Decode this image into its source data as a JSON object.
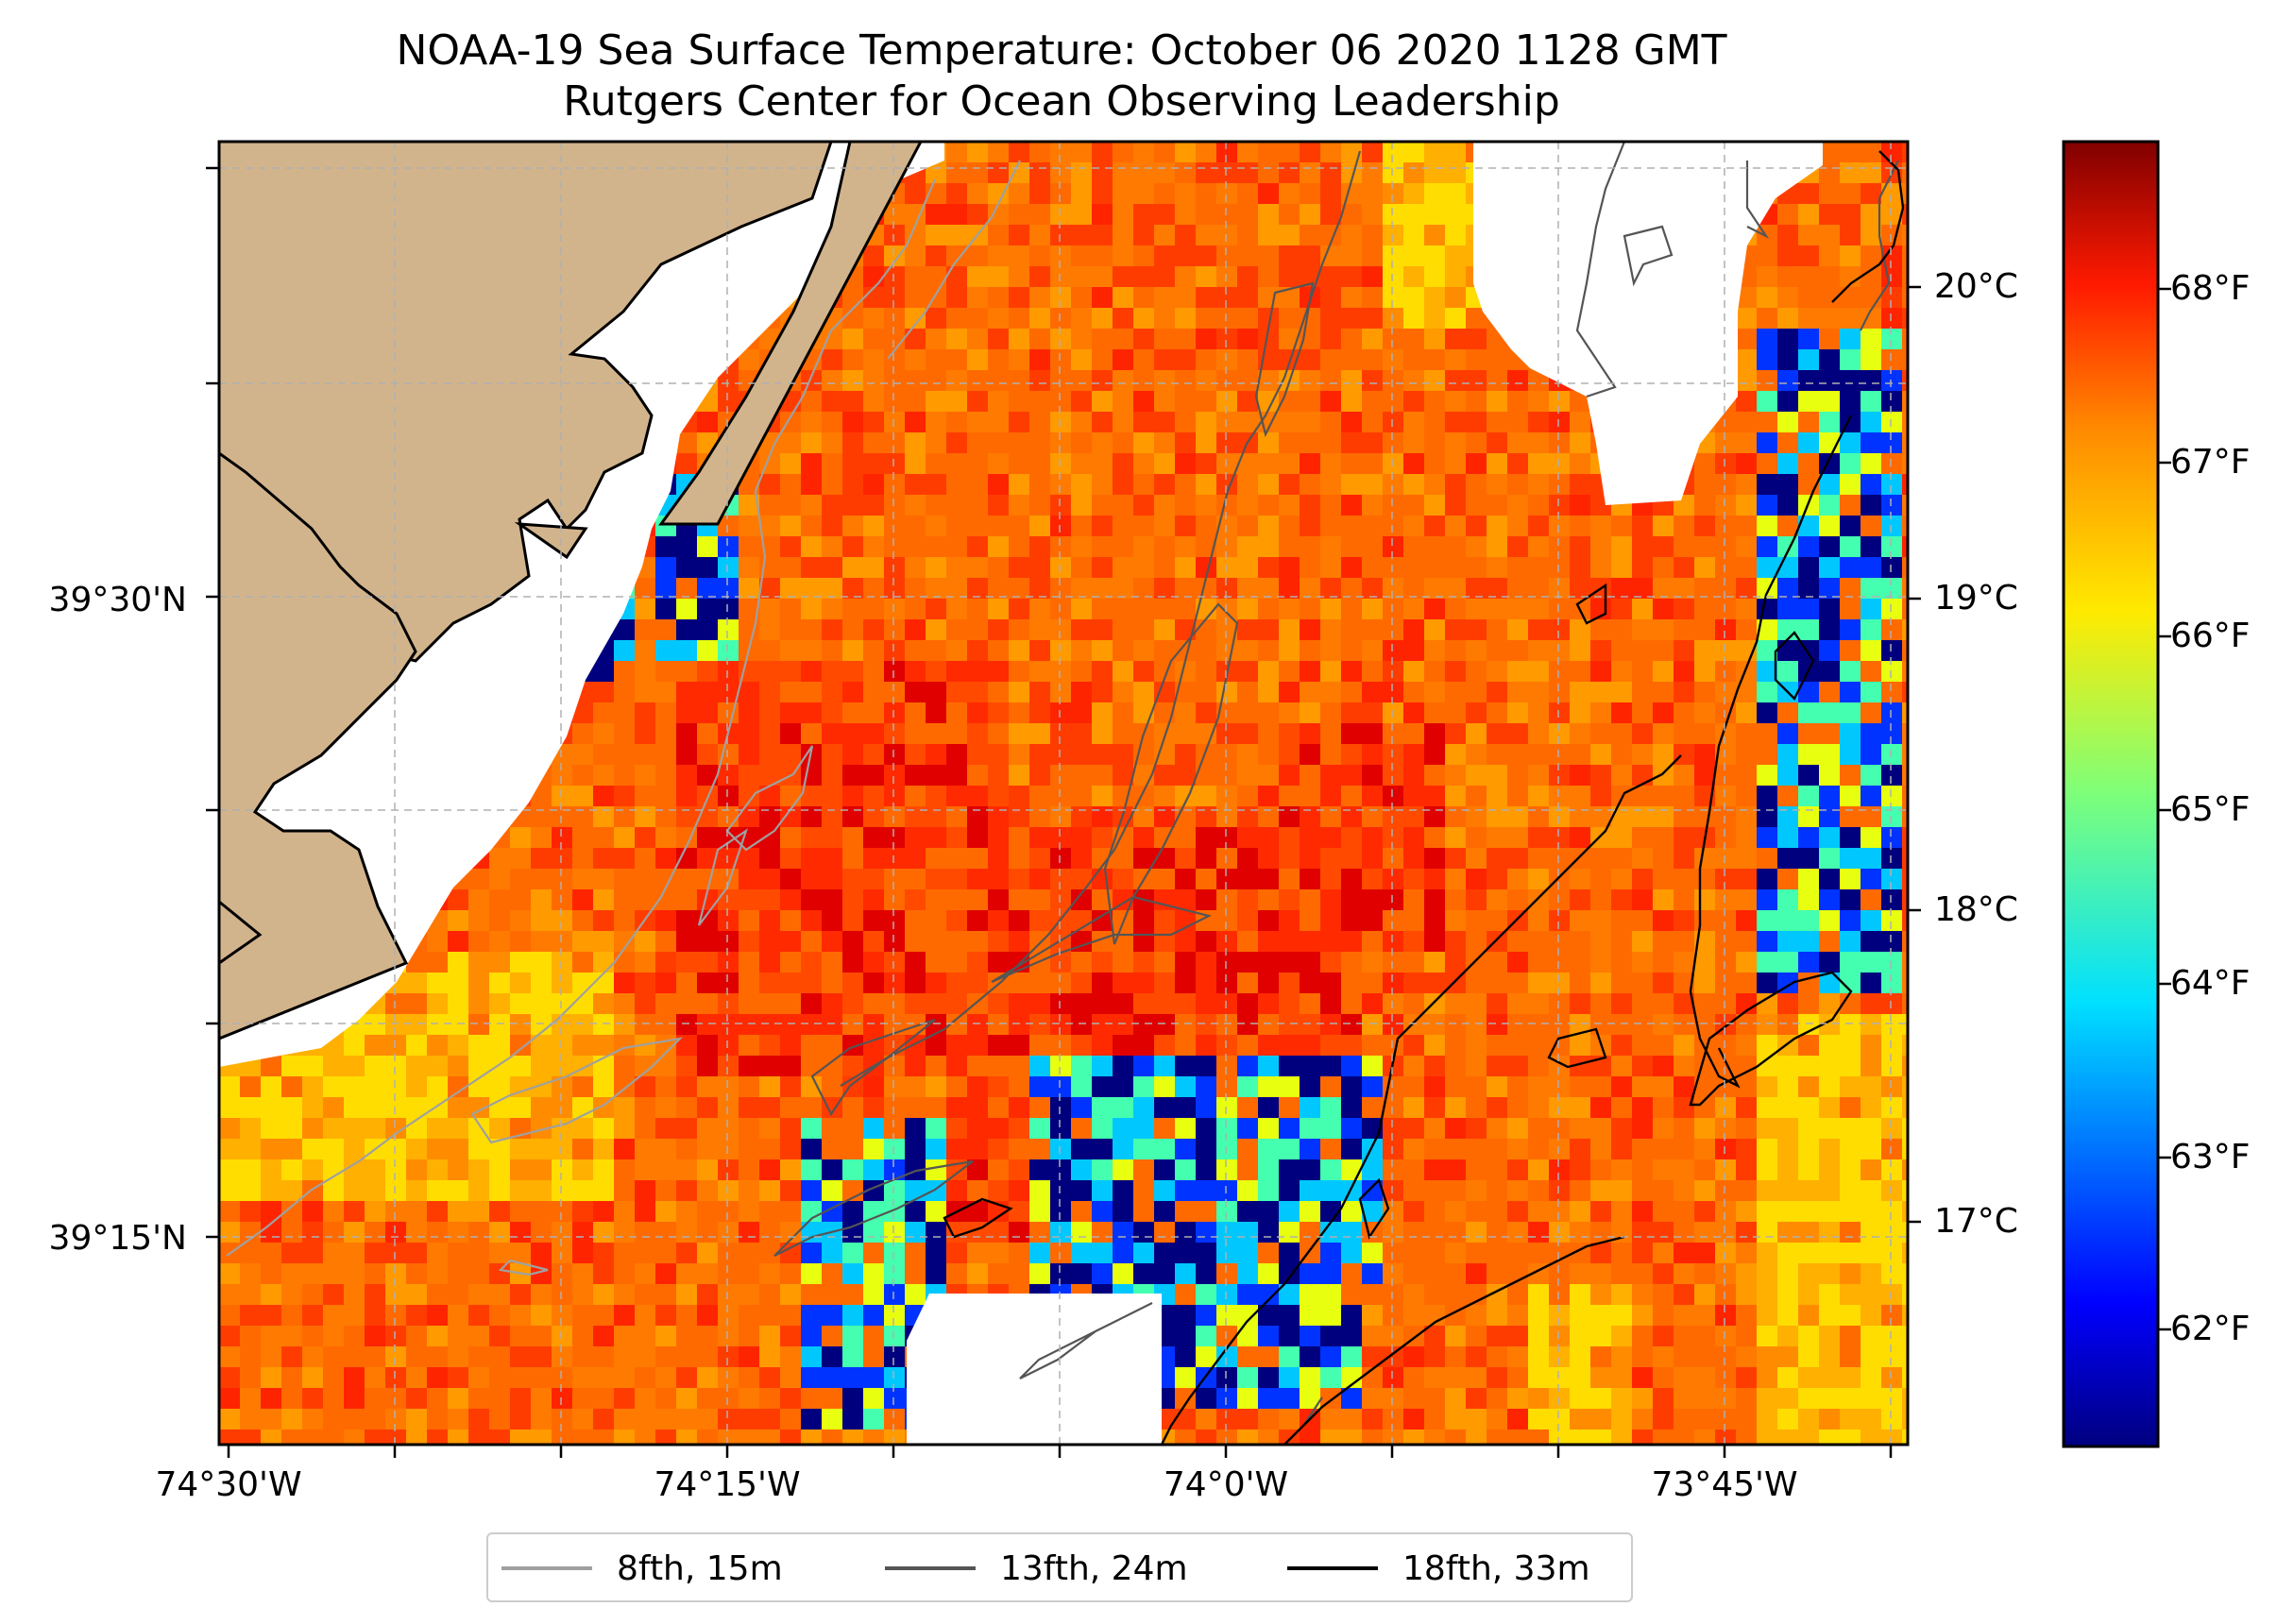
{
  "title": {
    "line1": "NOAA-19 Sea Surface Temperature: October 06 2020 1128 GMT",
    "line2": "Rutgers Center for Ocean Observing Leadership"
  },
  "map": {
    "lon_labels": [
      "74°30'W",
      "74°15'W",
      "74°0'W",
      "73°45'W"
    ],
    "lat_labels": [
      "39°30'N",
      "39°15'N"
    ],
    "land_color": "#d2b48c",
    "gridlines": true
  },
  "colorbar": {
    "colormap": "jet",
    "celsius_labels": [
      "20°C",
      "19°C",
      "18°C",
      "17°C"
    ],
    "fahrenheit_labels": [
      "68°F",
      "67°F",
      "66°F",
      "65°F",
      "64°F",
      "63°F",
      "62°F"
    ],
    "range_f": [
      61.3,
      68.7
    ]
  },
  "legend": {
    "items": [
      {
        "label": "8fth, 15m",
        "color": "#a0a0a0"
      },
      {
        "label": "13fth, 24m",
        "color": "#555555"
      },
      {
        "label": "18fth, 33m",
        "color": "#000000"
      }
    ]
  }
}
